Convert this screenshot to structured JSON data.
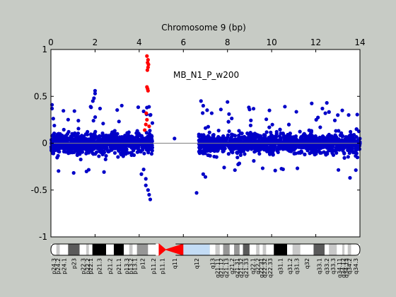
{
  "chart_data": {
    "type": "scatter",
    "title": "Chromosome 9 (bp)",
    "annotation": "MB_N1_P_w200",
    "x_ticks": [
      0,
      2,
      4,
      6,
      8,
      10,
      12,
      14
    ],
    "y_ticks": [
      {
        "value": 1,
        "label": "1"
      },
      {
        "value": 0.5,
        "label": "0.5"
      },
      {
        "value": 0,
        "label": "0"
      },
      {
        "value": -0.5,
        "label": "-0.5"
      },
      {
        "value": -1,
        "label": "-1"
      }
    ],
    "xlim": [
      0,
      14
    ],
    "ylim": [
      -1,
      1
    ],
    "x_axis_position": "top",
    "grid": false,
    "baseline": 0,
    "series": [
      {
        "color": "#0000c8",
        "segments": [
          {
            "x_range": [
              0,
              4.6
            ],
            "typical_range": [
              -0.2,
              0.2
            ],
            "spread": [
              -0.33,
              0.42
            ]
          },
          {
            "x_range": [
              6.7,
              14
            ],
            "typical_range": [
              -0.2,
              0.2
            ],
            "spread": [
              -0.3,
              0.43
            ]
          }
        ],
        "outliers": [
          [
            0.05,
            0.41
          ],
          [
            0.05,
            0.37
          ],
          [
            1.8,
            0.39
          ],
          [
            1.9,
            0.45
          ],
          [
            1.95,
            0.48
          ],
          [
            2.0,
            0.56
          ],
          [
            2.0,
            0.53
          ],
          [
            4.1,
            -0.33
          ],
          [
            4.2,
            -0.28
          ],
          [
            4.3,
            -0.38
          ],
          [
            4.3,
            -0.45
          ],
          [
            4.4,
            -0.5
          ],
          [
            4.45,
            -0.55
          ],
          [
            4.5,
            -0.6
          ],
          [
            4.35,
            0.38
          ],
          [
            4.2,
            0.34
          ],
          [
            4.5,
            0.3
          ],
          [
            5.6,
            0.05
          ],
          [
            6.6,
            -0.53
          ],
          [
            6.8,
            0.45
          ],
          [
            6.9,
            0.4
          ],
          [
            6.9,
            -0.33
          ],
          [
            7.0,
            -0.36
          ],
          [
            7.7,
            0.36
          ],
          [
            8.0,
            0.44
          ],
          [
            9.0,
            0.36
          ],
          [
            9.9,
            0.35
          ],
          [
            10.6,
            0.39
          ],
          [
            12.3,
            0.37
          ],
          [
            12.5,
            0.43
          ],
          [
            13.2,
            0.35
          ],
          [
            13.55,
            -0.37
          ]
        ]
      },
      {
        "color": "#ff0000",
        "points": [
          [
            4.35,
            0.93
          ],
          [
            4.4,
            0.89
          ],
          [
            4.38,
            0.86
          ],
          [
            4.42,
            0.84
          ],
          [
            4.4,
            0.81
          ],
          [
            4.37,
            0.78
          ],
          [
            4.35,
            0.6
          ],
          [
            4.38,
            0.58
          ],
          [
            4.4,
            0.56
          ],
          [
            4.32,
            0.32
          ],
          [
            4.35,
            0.25
          ],
          [
            4.3,
            0.2
          ],
          [
            4.45,
            0.18
          ],
          [
            4.25,
            0.14
          ]
        ]
      }
    ],
    "ideogram": {
      "centromere_x": 5.2,
      "bands": [
        {
          "label": "p24.3",
          "start": 0.0,
          "end": 0.25,
          "stain": "gneg"
        },
        {
          "label": "p24.2",
          "start": 0.25,
          "end": 0.4,
          "stain": "gpos25"
        },
        {
          "label": "p24.1",
          "start": 0.4,
          "end": 0.78,
          "stain": "gneg"
        },
        {
          "label": "p23",
          "start": 0.78,
          "end": 1.3,
          "stain": "gpos75"
        },
        {
          "label": "p22.3",
          "start": 1.3,
          "end": 1.6,
          "stain": "gneg"
        },
        {
          "label": "p22.2",
          "start": 1.6,
          "end": 1.72,
          "stain": "gpos25"
        },
        {
          "label": "p22.1",
          "start": 1.72,
          "end": 1.88,
          "stain": "gneg"
        },
        {
          "label": "p21.3",
          "start": 1.88,
          "end": 2.5,
          "stain": "gpos100"
        },
        {
          "label": "p21.2",
          "start": 2.5,
          "end": 2.85,
          "stain": "gneg"
        },
        {
          "label": "p21.1",
          "start": 2.85,
          "end": 3.3,
          "stain": "gpos100"
        },
        {
          "label": "p13.3",
          "start": 3.3,
          "end": 3.55,
          "stain": "gneg"
        },
        {
          "label": "p13.2",
          "start": 3.55,
          "end": 3.7,
          "stain": "gpos25"
        },
        {
          "label": "p13.1",
          "start": 3.7,
          "end": 3.9,
          "stain": "gneg"
        },
        {
          "label": "p12",
          "start": 3.9,
          "end": 4.4,
          "stain": "gpos50"
        },
        {
          "label": "p11.2",
          "start": 4.4,
          "end": 4.9,
          "stain": "gneg"
        },
        {
          "label": "p11.1",
          "start": 4.9,
          "end": 5.2,
          "stain": "acen"
        },
        {
          "label": "q11",
          "start": 5.2,
          "end": 6.0,
          "stain": "acen"
        },
        {
          "label": "q12",
          "start": 6.0,
          "end": 7.2,
          "stain": "gvar"
        },
        {
          "label": "q13",
          "start": 7.2,
          "end": 7.45,
          "stain": "gneg"
        },
        {
          "label": "q21.11",
          "start": 7.45,
          "end": 7.65,
          "stain": "gpos25"
        },
        {
          "label": "q21.12",
          "start": 7.65,
          "end": 7.8,
          "stain": "gneg"
        },
        {
          "label": "q21.13",
          "start": 7.8,
          "end": 8.1,
          "stain": "gpos50"
        },
        {
          "label": "q21.2",
          "start": 8.1,
          "end": 8.3,
          "stain": "gneg"
        },
        {
          "label": "q21.31",
          "start": 8.3,
          "end": 8.55,
          "stain": "gpos50"
        },
        {
          "label": "q21.32",
          "start": 8.55,
          "end": 8.7,
          "stain": "gneg"
        },
        {
          "label": "q21.33",
          "start": 8.7,
          "end": 9.0,
          "stain": "gpos75"
        },
        {
          "label": "q22.1",
          "start": 9.0,
          "end": 9.3,
          "stain": "gneg"
        },
        {
          "label": "q22.2",
          "start": 9.3,
          "end": 9.45,
          "stain": "gpos25"
        },
        {
          "label": "q22.31",
          "start": 9.45,
          "end": 9.6,
          "stain": "gneg"
        },
        {
          "label": "q22.32",
          "start": 9.6,
          "end": 9.75,
          "stain": "gpos25"
        },
        {
          "label": "q22.33",
          "start": 9.75,
          "end": 10.1,
          "stain": "gneg"
        },
        {
          "label": "q31.1",
          "start": 10.1,
          "end": 10.7,
          "stain": "gpos100"
        },
        {
          "label": "q31.2",
          "start": 10.7,
          "end": 10.95,
          "stain": "gneg"
        },
        {
          "label": "q31.3",
          "start": 10.95,
          "end": 11.3,
          "stain": "gpos25"
        },
        {
          "label": "q32",
          "start": 11.3,
          "end": 11.9,
          "stain": "gneg"
        },
        {
          "label": "q33.1",
          "start": 11.9,
          "end": 12.4,
          "stain": "gpos75"
        },
        {
          "label": "q33.2",
          "start": 12.4,
          "end": 12.6,
          "stain": "gneg"
        },
        {
          "label": "q33.3",
          "start": 12.6,
          "end": 12.95,
          "stain": "gpos25"
        },
        {
          "label": "q34.11",
          "start": 12.95,
          "end": 13.2,
          "stain": "gneg"
        },
        {
          "label": "q34.12",
          "start": 13.2,
          "end": 13.3,
          "stain": "gpos25"
        },
        {
          "label": "q34.13",
          "start": 13.3,
          "end": 13.45,
          "stain": "gneg"
        },
        {
          "label": "q34.2",
          "start": 13.45,
          "end": 13.6,
          "stain": "gpos25"
        },
        {
          "label": "q34.3",
          "start": 13.6,
          "end": 14.0,
          "stain": "gneg"
        }
      ]
    }
  }
}
